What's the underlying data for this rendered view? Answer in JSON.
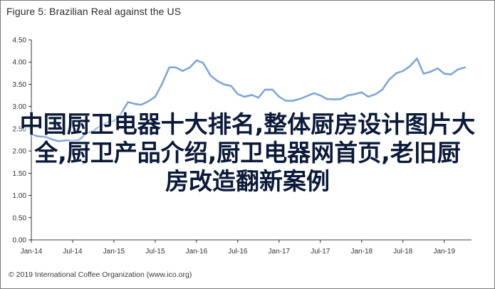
{
  "figure": {
    "title": "Figure 5: Brazilian Real against the US",
    "footer": "© 2019 International Coffee Organization (www.ico.org)"
  },
  "overlay": {
    "lines": [
      "中国厨卫电器十大排名,整体厨房设计图片大",
      "全,厨卫产品介绍,厨卫电器网首页,老旧厨",
      "房改造翻新案例"
    ]
  },
  "colors": {
    "line": "#7ea6d8",
    "axis": "#000000",
    "grid": "#000000",
    "overlay_text": "#0b1a3a"
  },
  "chart_data": {
    "type": "line",
    "title": "Figure 5: Brazilian Real against the US",
    "xlabel": "",
    "ylabel": "",
    "ylim": [
      0,
      4.5
    ],
    "yticks": [
      "0.00",
      "0.50",
      "1.00",
      "1.50",
      "2.00",
      "2.50",
      "3.00",
      "3.50",
      "4.00",
      "4.50"
    ],
    "grid": false,
    "legend": "none",
    "xticks": [
      {
        "label": "Jan-14",
        "x": 2014.0
      },
      {
        "label": "Jul-14",
        "x": 2014.5
      },
      {
        "label": "Jan-15",
        "x": 2015.0
      },
      {
        "label": "Jul-15",
        "x": 2015.5
      },
      {
        "label": "Jan-16",
        "x": 2016.0
      },
      {
        "label": "Jul-16",
        "x": 2016.5
      },
      {
        "label": "Jan-17",
        "x": 2017.0
      },
      {
        "label": "Jul-17",
        "x": 2017.5
      },
      {
        "label": "Jan-18",
        "x": 2018.0
      },
      {
        "label": "Jul-18",
        "x": 2018.5
      },
      {
        "label": "Jan-19",
        "x": 2019.0
      }
    ],
    "xlim": [
      2014.0,
      2019.33
    ],
    "series": [
      {
        "values": [
          [
            2014.0,
            2.38
          ],
          [
            2014.08,
            2.33
          ],
          [
            2014.17,
            2.32
          ],
          [
            2014.25,
            2.26
          ],
          [
            2014.33,
            2.22
          ],
          [
            2014.42,
            2.24
          ],
          [
            2014.5,
            2.23
          ],
          [
            2014.58,
            2.25
          ],
          [
            2014.67,
            2.4
          ],
          [
            2014.75,
            2.45
          ],
          [
            2014.83,
            2.56
          ],
          [
            2014.92,
            2.64
          ],
          [
            2015.0,
            2.68
          ],
          [
            2015.08,
            2.82
          ],
          [
            2015.17,
            3.1
          ],
          [
            2015.25,
            3.06
          ],
          [
            2015.33,
            3.04
          ],
          [
            2015.42,
            3.12
          ],
          [
            2015.5,
            3.22
          ],
          [
            2015.58,
            3.5
          ],
          [
            2015.67,
            3.88
          ],
          [
            2015.75,
            3.88
          ],
          [
            2015.83,
            3.8
          ],
          [
            2015.92,
            3.88
          ],
          [
            2016.0,
            4.04
          ],
          [
            2016.08,
            3.98
          ],
          [
            2016.17,
            3.7
          ],
          [
            2016.25,
            3.58
          ],
          [
            2016.33,
            3.5
          ],
          [
            2016.42,
            3.46
          ],
          [
            2016.5,
            3.28
          ],
          [
            2016.58,
            3.22
          ],
          [
            2016.67,
            3.26
          ],
          [
            2016.75,
            3.2
          ],
          [
            2016.83,
            3.38
          ],
          [
            2016.92,
            3.38
          ],
          [
            2017.0,
            3.22
          ],
          [
            2017.08,
            3.13
          ],
          [
            2017.17,
            3.13
          ],
          [
            2017.25,
            3.17
          ],
          [
            2017.33,
            3.23
          ],
          [
            2017.42,
            3.3
          ],
          [
            2017.5,
            3.25
          ],
          [
            2017.58,
            3.17
          ],
          [
            2017.67,
            3.16
          ],
          [
            2017.75,
            3.17
          ],
          [
            2017.83,
            3.25
          ],
          [
            2017.92,
            3.28
          ],
          [
            2018.0,
            3.32
          ],
          [
            2018.08,
            3.22
          ],
          [
            2018.17,
            3.28
          ],
          [
            2018.25,
            3.38
          ],
          [
            2018.33,
            3.6
          ],
          [
            2018.42,
            3.75
          ],
          [
            2018.5,
            3.8
          ],
          [
            2018.58,
            3.9
          ],
          [
            2018.67,
            4.08
          ],
          [
            2018.75,
            3.74
          ],
          [
            2018.83,
            3.78
          ],
          [
            2018.92,
            3.86
          ],
          [
            2019.0,
            3.74
          ],
          [
            2019.08,
            3.72
          ],
          [
            2019.17,
            3.84
          ],
          [
            2019.25,
            3.88
          ]
        ]
      }
    ]
  }
}
